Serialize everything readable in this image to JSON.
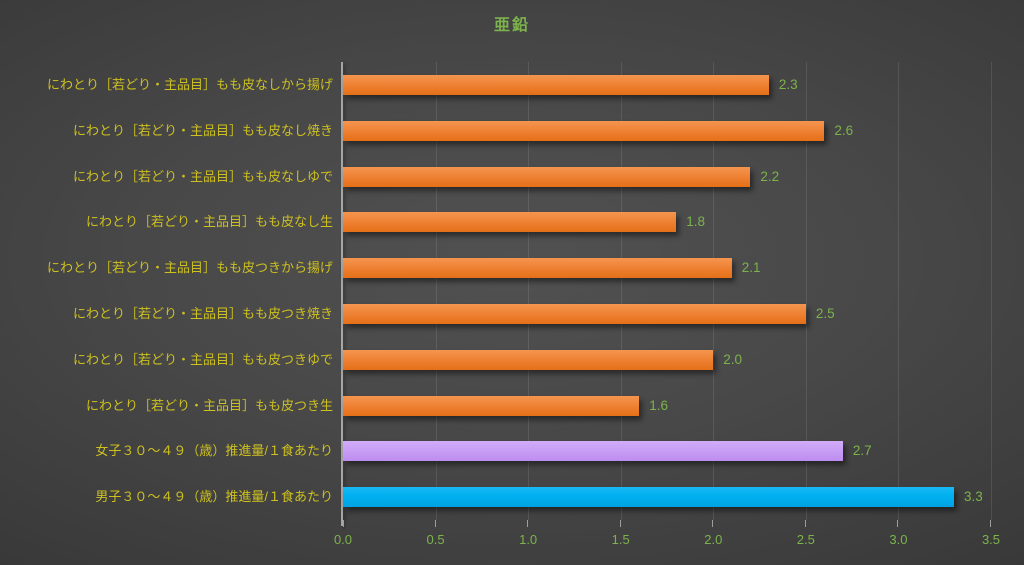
{
  "chart_data": {
    "type": "bar",
    "orientation": "horizontal",
    "title": "亜鉛",
    "categories": [
      "にわとり［若どり・主品目］もも皮なしから揚げ",
      "にわとり［若どり・主品目］もも皮なし焼き",
      "にわとり［若どり・主品目］もも皮なしゆで",
      "にわとり［若どり・主品目］もも皮なし生",
      "にわとり［若どり・主品目］もも皮つきから揚げ",
      "にわとり［若どり・主品目］もも皮つき焼き",
      "にわとり［若どり・主品目］もも皮つきゆで",
      "にわとり［若どり・主品目］もも皮つき生",
      "女子３０～４９（歳）推進量/１食あたり",
      "男子３０～４９（歳）推進量/１食あたり"
    ],
    "values": [
      2.3,
      2.6,
      2.2,
      1.8,
      2.1,
      2.5,
      2.0,
      1.6,
      2.7,
      3.3
    ],
    "value_labels": [
      "2.3",
      "2.6",
      "2.2",
      "1.8",
      "2.1",
      "2.5",
      "2.0",
      "1.6",
      "2.7",
      "3.3"
    ],
    "bar_colors": [
      "orange",
      "orange",
      "orange",
      "orange",
      "orange",
      "orange",
      "orange",
      "orange",
      "purple",
      "blue"
    ],
    "xlim": [
      0,
      3.5
    ],
    "xticks": [
      0.0,
      0.5,
      1.0,
      1.5,
      2.0,
      2.5,
      3.0,
      3.5
    ],
    "xtick_labels": [
      "0.0",
      "0.5",
      "1.0",
      "1.5",
      "2.0",
      "2.5",
      "3.0",
      "3.5"
    ],
    "grid": true,
    "legend": false
  },
  "colors": {
    "background_center": "#4f4f4f",
    "background_edge": "#252525",
    "bar_orange": "#ED7D31",
    "bar_purple": "#C9A0F5",
    "bar_blue": "#00B0F0",
    "title_text": "#7CB34C",
    "category_text": "#CDC01F",
    "value_text": "#7CB34C",
    "xtick_text": "#7CB34C",
    "axis_line": "#A6A6A6",
    "gridline": "#5C5C5C"
  }
}
